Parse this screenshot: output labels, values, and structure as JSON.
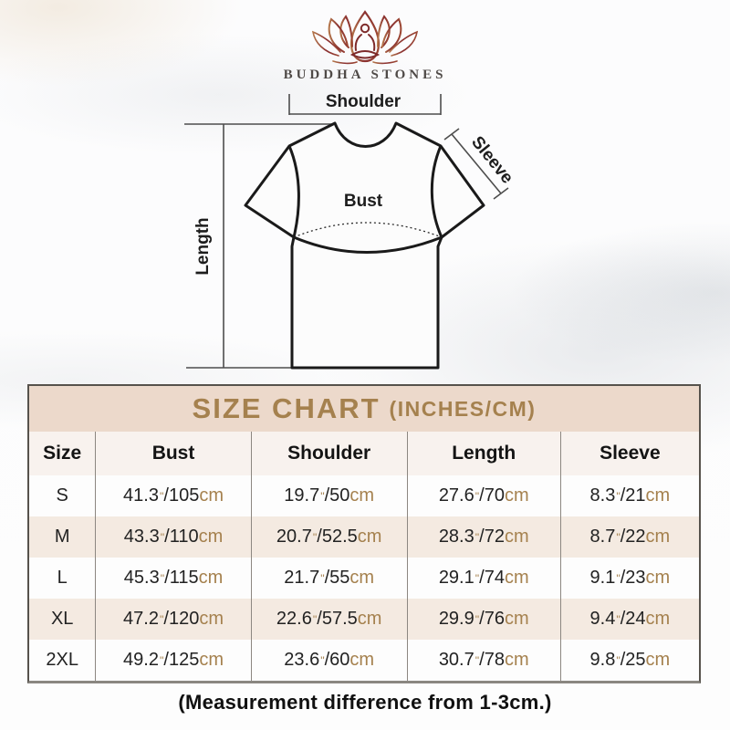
{
  "brand": {
    "name": "BUDDHA STONES",
    "logo_icon": "lotus-meditation"
  },
  "diagram": {
    "shoulder_label": "Shoulder",
    "sleeve_label": "Sleeve",
    "bust_label": "Bust",
    "length_label": "Length"
  },
  "size_chart": {
    "title": "SIZE CHART",
    "title_unit": "(INCHES/CM)",
    "columns": [
      "Size",
      "Bust",
      "Shoulder",
      "Length",
      "Sleeve"
    ],
    "rows": [
      {
        "size": "S",
        "bust": {
          "in": "41.3",
          "cm": "105"
        },
        "shoulder": {
          "in": "19.7",
          "cm": "50"
        },
        "length": {
          "in": "27.6",
          "cm": "70"
        },
        "sleeve": {
          "in": "8.3",
          "cm": "21"
        }
      },
      {
        "size": "M",
        "bust": {
          "in": "43.3",
          "cm": "110"
        },
        "shoulder": {
          "in": "20.7",
          "cm": "52.5"
        },
        "length": {
          "in": "28.3",
          "cm": "72"
        },
        "sleeve": {
          "in": "8.7",
          "cm": "22"
        }
      },
      {
        "size": "L",
        "bust": {
          "in": "45.3",
          "cm": "115"
        },
        "shoulder": {
          "in": "21.7",
          "cm": "55"
        },
        "length": {
          "in": "29.1",
          "cm": "74"
        },
        "sleeve": {
          "in": "9.1",
          "cm": "23"
        }
      },
      {
        "size": "XL",
        "bust": {
          "in": "47.2",
          "cm": "120"
        },
        "shoulder": {
          "in": "22.6",
          "cm": "57.5"
        },
        "length": {
          "in": "29.9",
          "cm": "76"
        },
        "sleeve": {
          "in": "9.4",
          "cm": "24"
        }
      },
      {
        "size": "2XL",
        "bust": {
          "in": "49.2",
          "cm": "125"
        },
        "shoulder": {
          "in": "23.6",
          "cm": "60"
        },
        "length": {
          "in": "30.7",
          "cm": "78"
        },
        "sleeve": {
          "in": "9.8",
          "cm": "25"
        }
      }
    ]
  },
  "footer": {
    "note": "(Measurement difference from 1-3cm.)"
  },
  "colors": {
    "accent_gold": "#a5814e",
    "band_bg": "#ecd9cb",
    "row_alt_bg": "#f4eae1",
    "logo_maroon_dark": "#7e2b2b",
    "logo_maroon_light": "#b4764a",
    "shirt_line": "#1a1a1a",
    "measure_line": "#4d4d4d"
  }
}
